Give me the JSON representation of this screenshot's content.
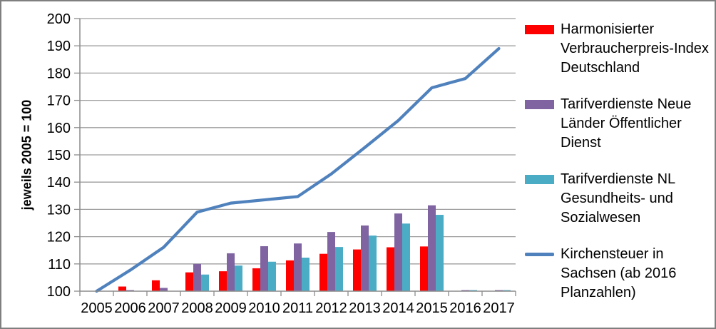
{
  "chart_data": {
    "type": "combo-bar-line",
    "title": "",
    "ylabel": "jeweils 2005 = 100",
    "xlabel": "",
    "ylim": [
      100,
      200
    ],
    "ytick_step": 10,
    "grid": true,
    "legend_position": "right",
    "axis_color": "#8c8c8c",
    "gridline_color": "#9d9d9d",
    "categories": [
      "2005",
      "2006",
      "2007",
      "2008",
      "2009",
      "2010",
      "2011",
      "2012",
      "2013",
      "2014",
      "2015",
      "2016",
      "2017"
    ],
    "series": [
      {
        "name": "Harmonisierter Verbraucherpreis-Index Deutschland",
        "type": "bar",
        "color": "#ff0000",
        "values": [
          100,
          101.7,
          104.0,
          106.9,
          107.3,
          108.4,
          111.3,
          113.7,
          115.3,
          116.1,
          116.4,
          null,
          null
        ]
      },
      {
        "name": "Tarifverdienste Neue Länder Öffentlicher Dienst",
        "type": "bar",
        "color": "#8064a2",
        "values": [
          100,
          100.4,
          101.2,
          110.0,
          113.9,
          116.5,
          117.5,
          121.7,
          124.1,
          128.5,
          131.5,
          100.4,
          100.4
        ]
      },
      {
        "name": "Tarifverdienste NL Gesundheits- und Sozialwesen",
        "type": "bar",
        "color": "#4bacc6",
        "values": [
          100,
          null,
          null,
          106.1,
          109.4,
          110.8,
          112.3,
          116.2,
          120.4,
          124.8,
          128.0,
          100.4,
          100.4
        ]
      },
      {
        "name": "Kirchensteuer in Sachsen (ab 2016 Planzahlen)",
        "type": "line",
        "color": "#4f81bd",
        "values": [
          100,
          107.7,
          116.1,
          129.0,
          132.3,
          133.5,
          134.7,
          143.0,
          152.7,
          162.6,
          174.6,
          178.0,
          189.0
        ]
      }
    ]
  }
}
